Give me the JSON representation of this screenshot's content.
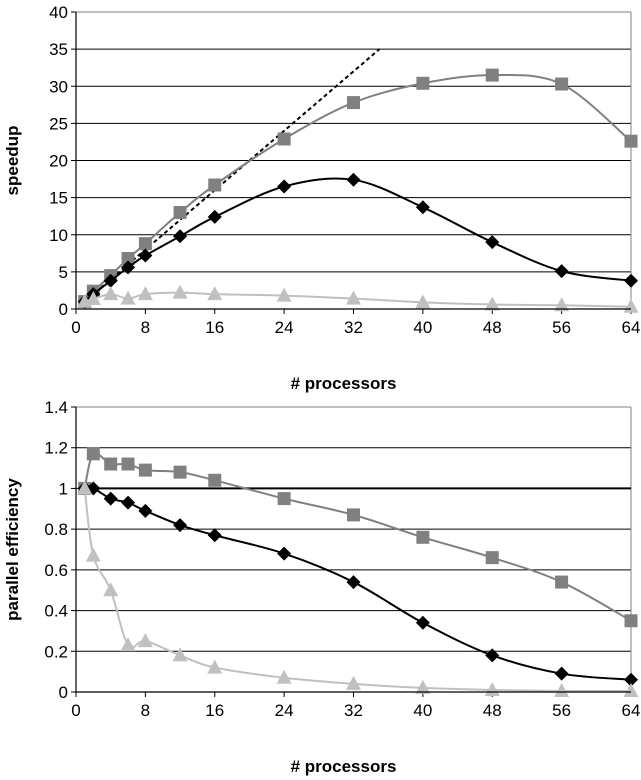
{
  "chart_data": [
    {
      "type": "line",
      "xlabel": "# processors",
      "ylabel": "speedup",
      "xlim": [
        0,
        64
      ],
      "ylim": [
        0,
        40
      ],
      "xticks": [
        0,
        8,
        16,
        24,
        32,
        40,
        48,
        56,
        64
      ],
      "yticks": [
        0,
        5,
        10,
        15,
        20,
        25,
        30,
        35,
        40
      ],
      "grid": "horizontal",
      "legend": "none",
      "series": [
        {
          "style": "dotted",
          "color": "#000000",
          "marker": "none",
          "points": [
            [
              1,
              1
            ],
            [
              35,
              35
            ]
          ]
        },
        {
          "color": "#808080",
          "marker": "square",
          "points": [
            [
              1,
              1
            ],
            [
              2,
              2.4
            ],
            [
              4,
              4.5
            ],
            [
              6,
              6.8
            ],
            [
              8,
              8.8
            ],
            [
              12,
              13
            ],
            [
              16,
              16.7
            ],
            [
              24,
              22.9
            ],
            [
              32,
              27.8
            ],
            [
              40,
              30.4
            ],
            [
              48,
              31.5
            ],
            [
              56,
              30.3
            ],
            [
              64,
              22.6
            ]
          ]
        },
        {
          "color": "#000000",
          "marker": "diamond",
          "points": [
            [
              1,
              1
            ],
            [
              2,
              2
            ],
            [
              4,
              3.8
            ],
            [
              6,
              5.6
            ],
            [
              8,
              7.2
            ],
            [
              12,
              9.8
            ],
            [
              16,
              12.4
            ],
            [
              24,
              16.5
            ],
            [
              32,
              17.4
            ],
            [
              40,
              13.7
            ],
            [
              48,
              9
            ],
            [
              56,
              5.1
            ],
            [
              64,
              3.8
            ]
          ]
        },
        {
          "color": "#c0c0c0",
          "marker": "triangle",
          "points": [
            [
              1,
              1
            ],
            [
              2,
              1.35
            ],
            [
              4,
              2
            ],
            [
              6,
              1.4
            ],
            [
              8,
              2
            ],
            [
              12,
              2.2
            ],
            [
              16,
              2
            ],
            [
              24,
              1.8
            ],
            [
              32,
              1.4
            ],
            [
              40,
              0.9
            ],
            [
              48,
              0.6
            ],
            [
              56,
              0.5
            ],
            [
              64,
              0.3
            ]
          ]
        }
      ]
    },
    {
      "type": "line",
      "xlabel": "# processors",
      "ylabel": "parallel efficiency",
      "xlim": [
        0,
        64
      ],
      "ylim": [
        0,
        1.4
      ],
      "xticks": [
        0,
        8,
        16,
        24,
        32,
        40,
        48,
        56,
        64
      ],
      "yticks": [
        "0",
        "0.2",
        "0.4",
        "0.6",
        "0.8",
        "1",
        "1.2",
        "1.4"
      ],
      "grid": "horizontal",
      "legend": "none",
      "series": [
        {
          "color": "#000000",
          "marker": "none",
          "points": [
            [
              1,
              1
            ],
            [
              64,
              1
            ]
          ]
        },
        {
          "color": "#808080",
          "marker": "square",
          "points": [
            [
              1,
              1
            ],
            [
              2,
              1.17
            ],
            [
              4,
              1.12
            ],
            [
              6,
              1.12
            ],
            [
              8,
              1.09
            ],
            [
              12,
              1.08
            ],
            [
              16,
              1.04
            ],
            [
              24,
              0.95
            ],
            [
              32,
              0.87
            ],
            [
              40,
              0.76
            ],
            [
              48,
              0.66
            ],
            [
              56,
              0.54
            ],
            [
              64,
              0.35
            ]
          ]
        },
        {
          "color": "#000000",
          "marker": "diamond",
          "points": [
            [
              1,
              1
            ],
            [
              2,
              1
            ],
            [
              4,
              0.95
            ],
            [
              6,
              0.93
            ],
            [
              8,
              0.89
            ],
            [
              12,
              0.82
            ],
            [
              16,
              0.77
            ],
            [
              24,
              0.68
            ],
            [
              32,
              0.54
            ],
            [
              40,
              0.34
            ],
            [
              48,
              0.18
            ],
            [
              56,
              0.09
            ],
            [
              64,
              0.06
            ]
          ]
        },
        {
          "color": "#c0c0c0",
          "marker": "triangle",
          "points": [
            [
              1,
              1
            ],
            [
              2,
              0.67
            ],
            [
              4,
              0.5
            ],
            [
              6,
              0.23
            ],
            [
              8,
              0.25
            ],
            [
              12,
              0.18
            ],
            [
              16,
              0.12
            ],
            [
              24,
              0.07
            ],
            [
              32,
              0.04
            ],
            [
              40,
              0.02
            ],
            [
              48,
              0.01
            ],
            [
              56,
              0.005
            ],
            [
              64,
              0.005
            ]
          ]
        }
      ]
    }
  ]
}
